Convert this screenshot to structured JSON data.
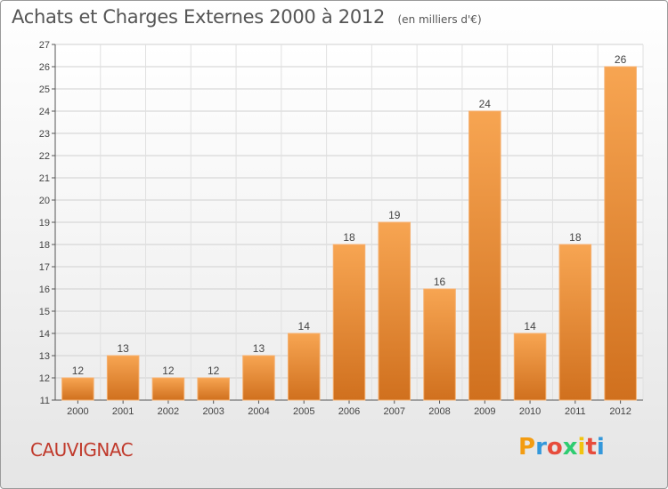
{
  "header": {
    "title": "Achats et Charges Externes 2000 à 2012",
    "subtitle": "(en milliers d'€)"
  },
  "footer": {
    "commune": "CAUVIGNAC",
    "logo_letters": [
      "P",
      "r",
      "o",
      "x",
      "i",
      "t",
      "i"
    ],
    "logo_colors": [
      "#f39c12",
      "#3498db",
      "#e74c3c",
      "#2ecc71",
      "#f1c40f",
      "#e74c3c",
      "#3498db"
    ]
  },
  "chart_data": {
    "type": "bar",
    "categories": [
      "2000",
      "2001",
      "2002",
      "2003",
      "2004",
      "2005",
      "2006",
      "2007",
      "2008",
      "2009",
      "2010",
      "2011",
      "2012"
    ],
    "values": [
      12,
      13,
      12,
      12,
      13,
      14,
      18,
      19,
      16,
      24,
      14,
      18,
      26
    ],
    "ylim": [
      11,
      27
    ],
    "yticks": [
      11,
      12,
      13,
      14,
      15,
      16,
      17,
      18,
      19,
      20,
      21,
      22,
      23,
      24,
      25,
      26,
      27
    ],
    "grid": true,
    "bar_color_top": "#f7a552",
    "bar_color_bottom": "#d0701e"
  }
}
